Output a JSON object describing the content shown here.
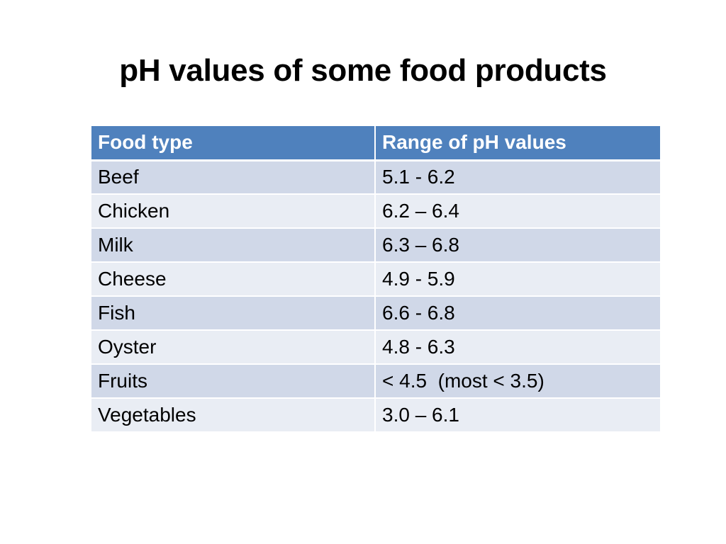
{
  "slide": {
    "title": "pH values of some food products"
  },
  "table": {
    "headers": [
      "Food type",
      "Range of pH values"
    ],
    "rows": [
      [
        "Beef",
        "5.1 - 6.2"
      ],
      [
        "Chicken",
        "6.2 – 6.4"
      ],
      [
        "Milk",
        "6.3 – 6.8"
      ],
      [
        "Cheese",
        "4.9 - 5.9"
      ],
      [
        "Fish",
        "6.6 - 6.8"
      ],
      [
        "Oyster",
        "4.8 - 6.3"
      ],
      [
        "Fruits",
        "< 4.5  (most < 3.5)"
      ],
      [
        "Vegetables",
        "3.0 – 6.1"
      ]
    ]
  },
  "colors": {
    "header_bg": "#4f81bd",
    "row_band_dark": "#d0d8e8",
    "row_band_light": "#e9edf4"
  }
}
